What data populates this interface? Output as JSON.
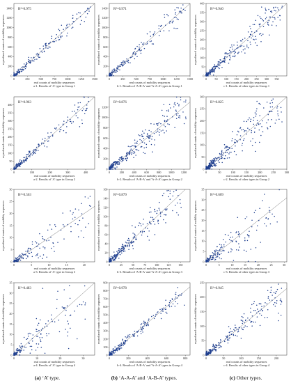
{
  "figure": {
    "column_captions": [
      {
        "letter": "(a)",
        "text": " ‘A’ type."
      },
      {
        "letter": "(b)",
        "text": " ‘A-A-A’ and ‘A-B-A’ types."
      },
      {
        "letter": "(c)",
        "text": " Other types."
      }
    ],
    "point_color": "#1f3f8f"
  },
  "chart_data": [
    {
      "id": "a-1",
      "type": "scatter",
      "caption": "a-1. Results of 'A' type in Group 1",
      "r2": "R²=0.975",
      "xlabel": "real counts of mobility sequences",
      "ylabel": "reproduced counts of mobility sequences",
      "xlim": [
        0,
        1500
      ],
      "ylim": [
        0,
        1500
      ],
      "xticks": [
        0,
        250,
        500,
        750,
        1000,
        1250,
        1500
      ],
      "yticks": [
        0,
        200,
        400,
        600,
        800,
        1000,
        1200,
        1400
      ],
      "n_points": 170,
      "spread": 0.08
    },
    {
      "id": "b-1",
      "type": "scatter",
      "caption": "b-1. Results of 'A-B-A' and 'A-A-A' types in Group 1",
      "r2": "R²=0.971",
      "xlabel": "real counts of mobility sequences",
      "ylabel": "reproduced counts of mobility sequences",
      "xlim": [
        0,
        1500
      ],
      "ylim": [
        0,
        1500
      ],
      "xticks": [
        0,
        250,
        500,
        750,
        1000,
        1250,
        1500
      ],
      "yticks": [
        0,
        200,
        400,
        600,
        800,
        1000,
        1200,
        1400
      ],
      "n_points": 180,
      "spread": 0.09
    },
    {
      "id": "c-1",
      "type": "scatter",
      "caption": "c-1. Results of other types in Group 1",
      "r2": "R²=0.940",
      "xlabel": "real counts of mobility sequences",
      "ylabel": "reproduced counts of mobility sequences",
      "xlim": [
        0,
        400
      ],
      "ylim": [
        0,
        400
      ],
      "xticks": [
        0,
        50,
        100,
        150,
        200,
        250,
        300,
        350
      ],
      "yticks": [
        0,
        50,
        100,
        150,
        200,
        250,
        300,
        350,
        400
      ],
      "n_points": 280,
      "spread": 0.14
    },
    {
      "id": "a-2",
      "type": "scatter",
      "caption": "a-2. Results of 'A' type in Group 2",
      "r2": "R²=0.963",
      "xlabel": "real counts of mobility sequences",
      "ylabel": "reproduced counts of mobility sequences",
      "xlim": [
        0,
        450
      ],
      "ylim": [
        0,
        450
      ],
      "xticks": [
        0,
        100,
        200,
        300,
        400
      ],
      "yticks": [
        0,
        50,
        100,
        150,
        200,
        250,
        300,
        350,
        400
      ],
      "n_points": 200,
      "spread": 0.1
    },
    {
      "id": "b-2",
      "type": "scatter",
      "caption": "b-2. Results of 'A-B-A' and 'A-A-A' types in Group 2",
      "r2": "R²=0.876",
      "xlabel": "real counts of mobility sequences",
      "ylabel": "reproduced counts of mobility sequences",
      "xlim": [
        0,
        1300
      ],
      "ylim": [
        0,
        1400
      ],
      "xticks": [
        0,
        200,
        400,
        600,
        800,
        1000,
        1200
      ],
      "yticks": [
        0,
        200,
        400,
        600,
        800,
        1000,
        1200
      ],
      "n_points": 300,
      "spread": 0.2
    },
    {
      "id": "c-2",
      "type": "scatter",
      "caption": "c-2. Results of other types in Group 2",
      "r2": "R²=0.825",
      "xlabel": "real counts of mobility sequences",
      "ylabel": "reproduced counts of mobility sequences",
      "xlim": [
        0,
        300
      ],
      "ylim": [
        0,
        300
      ],
      "xticks": [
        0,
        50,
        100,
        150,
        200,
        250,
        300
      ],
      "yticks": [
        0,
        50,
        100,
        150,
        200,
        250,
        300
      ],
      "n_points": 320,
      "spread": 0.22
    },
    {
      "id": "a-3",
      "type": "scatter",
      "caption": "a-3. Results of 'A' type in Group 3",
      "r2": "R²=0.563",
      "xlabel": "real counts of mobility sequences",
      "ylabel": "reproduced counts of mobility sequences",
      "xlim": [
        0,
        23
      ],
      "ylim": [
        0,
        30
      ],
      "xticks": [
        0,
        5,
        10,
        15,
        20
      ],
      "yticks": [
        0,
        5,
        10,
        15,
        20,
        25,
        30
      ],
      "n_points": 150,
      "spread": 0.35
    },
    {
      "id": "b-3",
      "type": "scatter",
      "caption": "b-3. Results of 'A-B-A' and 'A-A-A' types in Group 3",
      "r2": "R²=0.879",
      "xlabel": "real counts of mobility sequences",
      "ylabel": "reproduced counts of mobility sequences",
      "xlim": [
        0,
        170
      ],
      "ylim": [
        0,
        160
      ],
      "xticks": [
        0,
        25,
        50,
        75,
        100,
        125,
        150
      ],
      "yticks": [
        0,
        20,
        40,
        60,
        80,
        100,
        120,
        140,
        160
      ],
      "n_points": 260,
      "spread": 0.18
    },
    {
      "id": "c-3",
      "type": "scatter",
      "caption": "c-3. Results of other types in Group 3",
      "r2": "R²=0.609",
      "xlabel": "real counts of mobility sequences",
      "ylabel": "reproduced counts of mobility sequences",
      "xlim": [
        0,
        31
      ],
      "ylim": [
        0,
        35
      ],
      "xticks": [
        0,
        5,
        10,
        15,
        20,
        25,
        30
      ],
      "yticks": [
        0,
        5,
        10,
        15,
        20,
        25,
        30,
        35
      ],
      "n_points": 180,
      "spread": 0.35
    },
    {
      "id": "a-4",
      "type": "scatter",
      "caption": "a-4. Results of 'A' type in Group 4",
      "r2": "R²=0.483",
      "xlabel": "real counts of mobility sequences",
      "ylabel": "reproduced counts of mobility sequences",
      "xlim": [
        0,
        35
      ],
      "ylim": [
        0,
        35
      ],
      "xticks": [
        0,
        10,
        20,
        30
      ],
      "yticks": [
        0,
        5,
        10,
        15,
        20,
        25,
        30,
        35
      ],
      "n_points": 170,
      "spread": 0.4
    },
    {
      "id": "b-4",
      "type": "scatter",
      "caption": "b-4. Results of 'A-B-A' and 'A-A-A' types in Group 4",
      "r2": "R²=0.978",
      "xlabel": "real counts of mobility sequences",
      "ylabel": "reproduced counts of mobility sequences",
      "xlim": [
        0,
        850
      ],
      "ylim": [
        0,
        900
      ],
      "xticks": [
        0,
        200,
        400,
        600,
        800
      ],
      "yticks": [
        0,
        100,
        200,
        300,
        400,
        500,
        600,
        700,
        800,
        900
      ],
      "n_points": 220,
      "spread": 0.08
    },
    {
      "id": "c-4",
      "type": "scatter",
      "caption": "c-4. Results of other types in Group 4",
      "r2": "R²=0.945",
      "xlabel": "real counts of mobility sequences",
      "ylabel": "reproduced counts of mobility sequences",
      "xlim": [
        0,
        230
      ],
      "ylim": [
        0,
        250
      ],
      "xticks": [
        0,
        50,
        100,
        150,
        200
      ],
      "yticks": [
        0,
        50,
        100,
        150,
        200,
        250
      ],
      "n_points": 250,
      "spread": 0.15
    }
  ]
}
